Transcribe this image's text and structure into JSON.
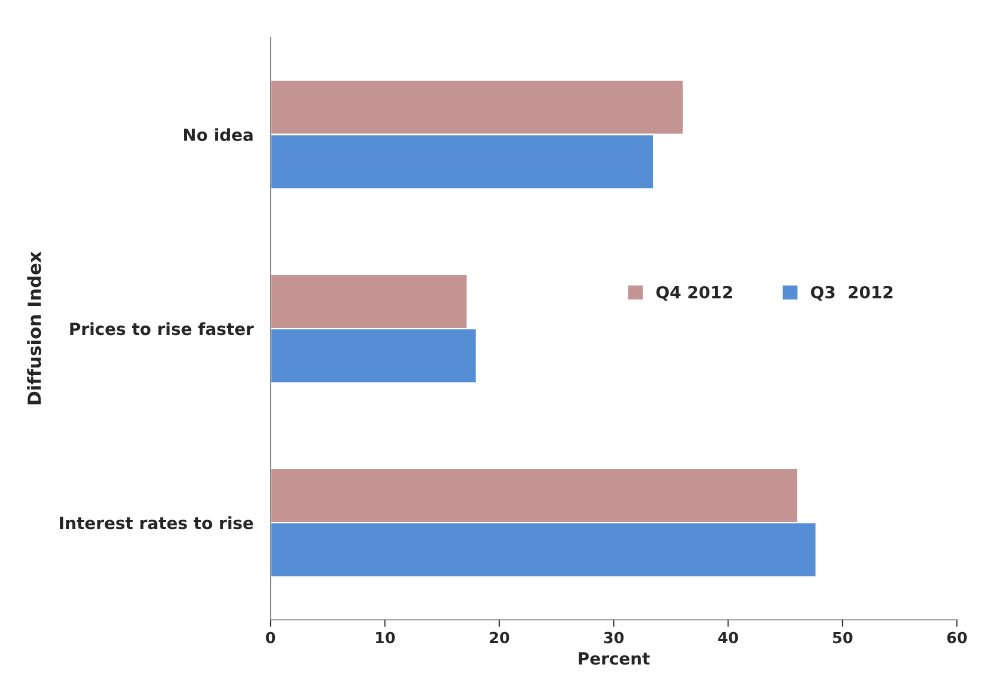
{
  "chart_data": {
    "type": "bar",
    "orientation": "horizontal",
    "xlabel": "Percent",
    "ylabel": "Diffusion Index",
    "categories": [
      "No idea",
      "Prices to rise faster",
      "Interest rates to rise"
    ],
    "series": [
      {
        "name": "Q4 2012",
        "color": "#c49493",
        "values": [
          36.1,
          17.2,
          46.1
        ]
      },
      {
        "name": "Q3  2012",
        "color": "#558ed5",
        "values": [
          33.5,
          18.0,
          47.7
        ]
      }
    ],
    "xlim": [
      0,
      60
    ],
    "xticks": [
      0,
      10,
      20,
      30,
      40,
      50,
      60
    ],
    "grid": false,
    "legend": "right"
  }
}
